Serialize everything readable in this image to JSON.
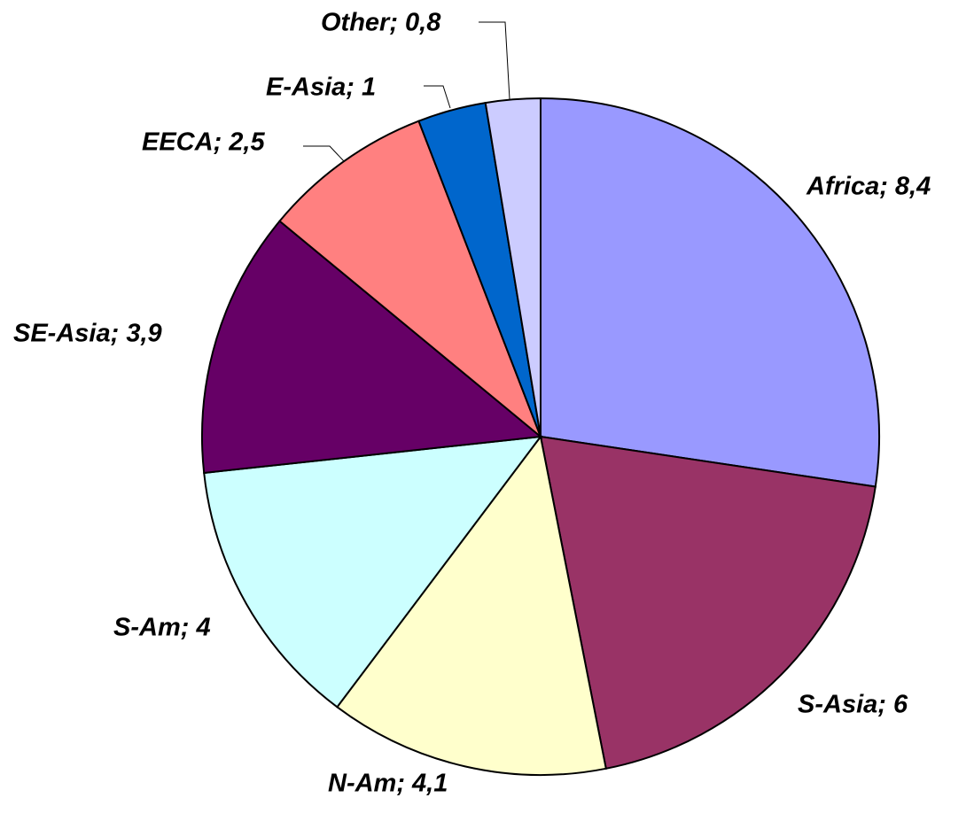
{
  "chart_data": {
    "type": "pie",
    "values": [
      8.4,
      6,
      4.1,
      4,
      3.9,
      2.5,
      1,
      0.8
    ],
    "value_labels": [
      "Africa; 8,4",
      "S-Asia; 6",
      "N-Am; 4,1",
      "S-Am; 4",
      "SE-Asia; 3,9",
      "EECA; 2,5",
      "E-Asia; 1",
      "Other; 0,8"
    ],
    "colors": [
      "#9999ff",
      "#993366",
      "#ffffcc",
      "#ccffff",
      "#660066",
      "#ff8080",
      "#0066cc",
      "#ccccff"
    ]
  }
}
